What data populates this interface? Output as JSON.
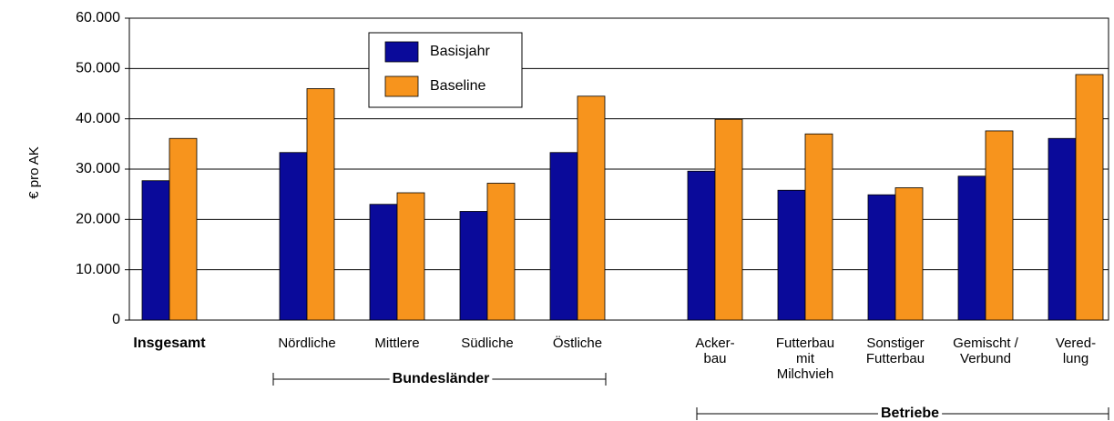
{
  "chart_data": {
    "type": "bar",
    "y_label": "€ pro AK",
    "categories": [
      "Insgesamt",
      "Nördliche",
      "Mittlere",
      "Südliche",
      "Östliche",
      "Acker-\nbau",
      "Futterbau\nmit\nMilchvieh",
      "Sonstiger\nFutterbau",
      "Gemischt /\nVerbund",
      "Vered-\nlung"
    ],
    "groups": [
      "Bundesländer",
      "Betriebe"
    ],
    "series": [
      {
        "name": "Basisjahr",
        "color": "#0a0a9a",
        "values": [
          27700,
          33300,
          23000,
          21600,
          33300,
          29600,
          25800,
          24900,
          28600,
          36100
        ]
      },
      {
        "name": "Baseline",
        "color": "#f7941d",
        "values": [
          36100,
          46000,
          25300,
          27200,
          44500,
          39900,
          37000,
          26300,
          37600,
          48800
        ]
      }
    ],
    "ylim": [
      0,
      60000
    ],
    "yticks": [
      0,
      {
        "value": 10000,
        "label": "10.000"
      },
      {
        "value": 20000,
        "label": "20.000"
      },
      {
        "value": 30000,
        "label": "30.000"
      },
      {
        "value": 40000,
        "label": "40.000"
      },
      {
        "value": 50000,
        "label": "50.000"
      },
      {
        "value": 60000,
        "label": "60.000"
      }
    ],
    "grid": true
  }
}
